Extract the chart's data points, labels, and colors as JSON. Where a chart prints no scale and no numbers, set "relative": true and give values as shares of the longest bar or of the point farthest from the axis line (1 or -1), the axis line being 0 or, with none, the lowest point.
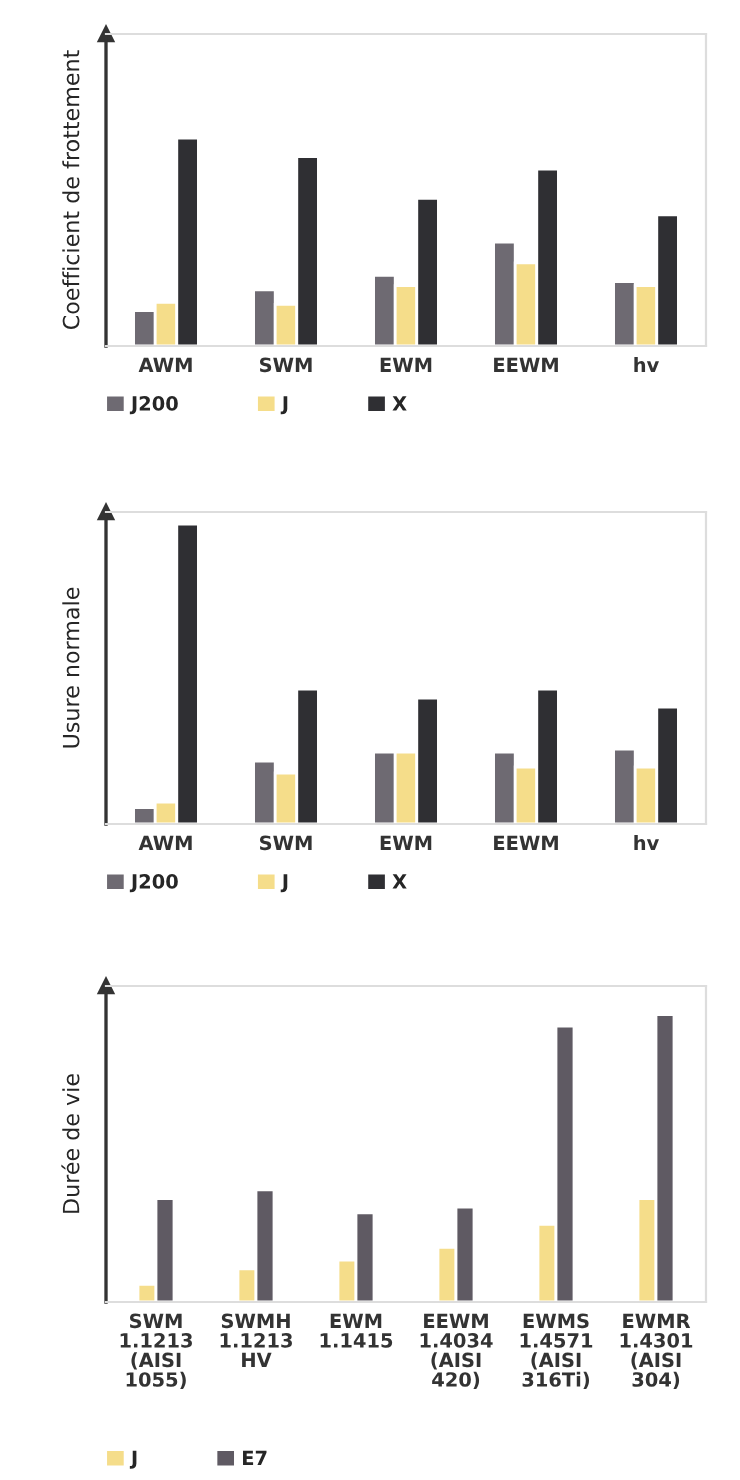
{
  "chart_data": [
    {
      "type": "bar",
      "relative": true,
      "ylabel": "Coefficient de frottement",
      "legend": "bottom",
      "categories": [
        "AWM",
        "SWM",
        "EWM",
        "EEWM",
        "hv"
      ],
      "series": [
        {
          "name": "J200",
          "color": "#6e6a72",
          "values": [
            0.17,
            0.27,
            0.34,
            0.5,
            0.31
          ]
        },
        {
          "name": "J",
          "color": "#f5dd8a",
          "values": [
            0.21,
            0.2,
            0.29,
            0.4,
            0.29
          ]
        },
        {
          "name": "X",
          "color": "#2f2f33",
          "values": [
            1,
            0.91,
            0.71,
            0.85,
            0.63
          ]
        }
      ]
    },
    {
      "type": "bar",
      "relative": true,
      "ylabel": "Usure normale",
      "legend": "bottom",
      "categories": [
        "AWM",
        "SWM",
        "EWM",
        "EEWM",
        "hv"
      ],
      "series": [
        {
          "name": "J200",
          "color": "#6e6a72",
          "values": [
            0.055,
            0.21,
            0.24,
            0.24,
            0.25
          ]
        },
        {
          "name": "J",
          "color": "#f5dd8a",
          "values": [
            0.073,
            0.17,
            0.24,
            0.19,
            0.19
          ]
        },
        {
          "name": "X",
          "color": "#2f2f33",
          "values": [
            1,
            0.45,
            0.42,
            0.45,
            0.39
          ]
        }
      ]
    },
    {
      "type": "bar",
      "relative": true,
      "ylabel": "Durée de vie",
      "legend": "bottom",
      "categories": [
        "SWM\n1.1213\n(AISI\n1055)",
        "SWMH\n1.1213\nHV",
        "EWM\n1.1415",
        "EEWM\n1.4034\n(AISI\n420)",
        "EWMS\n1.4571\n(AISI\n316Ti)",
        "EWMR\n1.4301\n(AISI\n304)"
      ],
      "series": [
        {
          "name": "J",
          "color": "#f5dd8a",
          "values": [
            0.061,
            0.115,
            0.146,
            0.19,
            0.27,
            0.36
          ]
        },
        {
          "name": "E7",
          "color": "#5f5a63",
          "values": [
            0.36,
            0.39,
            0.31,
            0.33,
            0.96,
            1
          ]
        }
      ]
    }
  ]
}
